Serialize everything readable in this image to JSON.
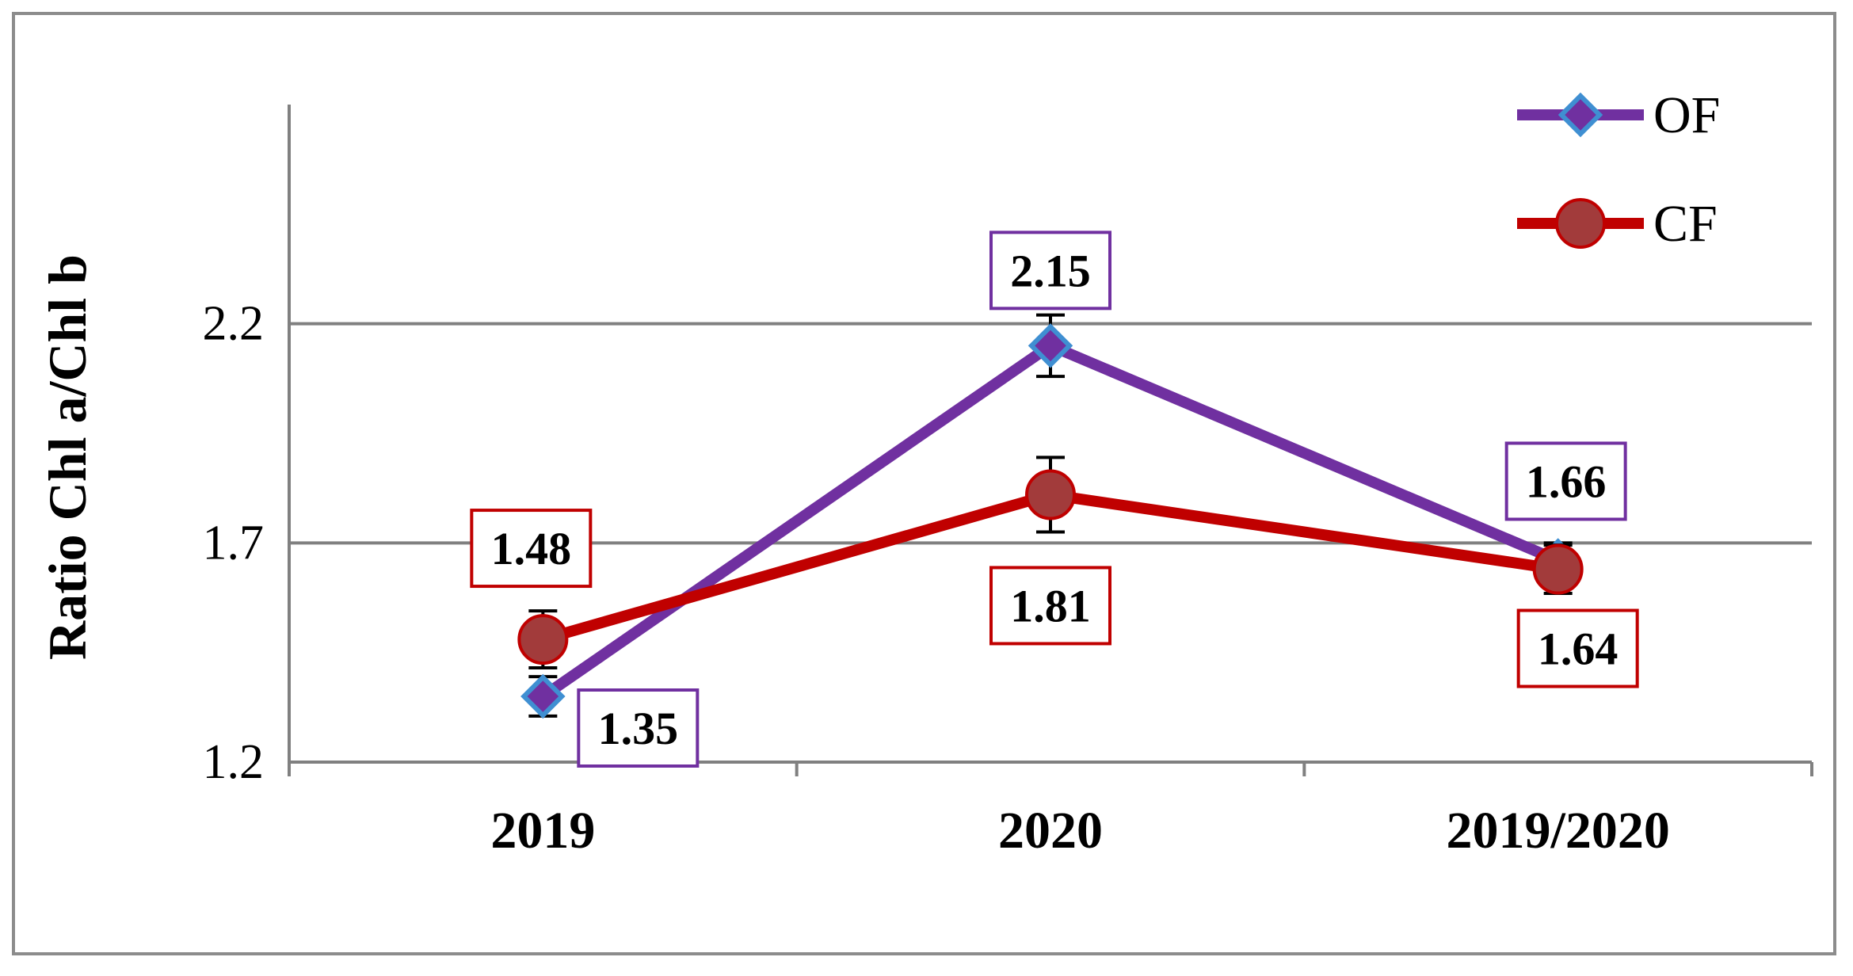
{
  "chart_data": {
    "type": "line",
    "ylabel": "Ratio Chl a/Chl b",
    "xlabel": "",
    "categories": [
      "2019",
      "2020",
      "2019/2020"
    ],
    "ylim": [
      1.2,
      2.7
    ],
    "yticks": [
      "1.2",
      "1.7",
      "2.2"
    ],
    "ytick_values": [
      1.2,
      1.7,
      2.2
    ],
    "grid": "horizontal",
    "legend": "top-right",
    "series": [
      {
        "name": "OF",
        "values": [
          1.35,
          2.15,
          1.66
        ],
        "labels": [
          "1.35",
          "2.15",
          "1.66"
        ],
        "errors": [
          0.045,
          0.07,
          0.04
        ],
        "color": "#7030a0",
        "marker": "diamond",
        "marker_color": "#3f8fd2"
      },
      {
        "name": "CF",
        "values": [
          1.48,
          1.81,
          1.64
        ],
        "labels": [
          "1.48",
          "1.81",
          "1.64"
        ],
        "errors": [
          0.065,
          0.085,
          0.055
        ],
        "color": "#c00000",
        "marker": "circle",
        "marker_color": "#a23b3b"
      }
    ]
  }
}
